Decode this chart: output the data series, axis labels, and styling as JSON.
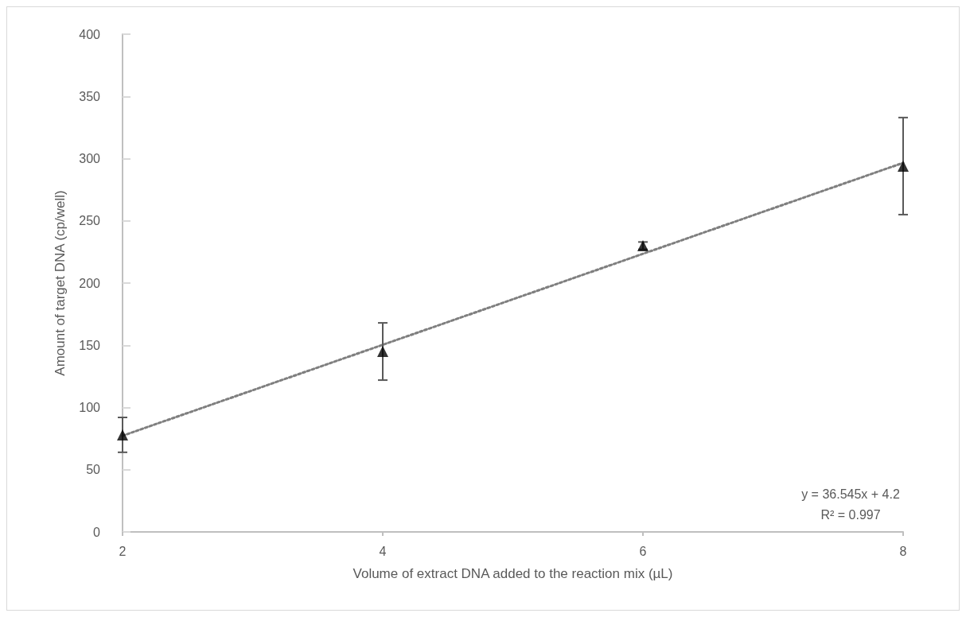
{
  "chart_data": {
    "type": "scatter",
    "xlabel": "Volume of extract DNA added to the reaction mix (µL)",
    "ylabel": "Amount of target DNA (cp/well)",
    "x": [
      2,
      4,
      6,
      8
    ],
    "series": [
      {
        "color": "#000000",
        "marker": "triangle",
        "values": [
          78,
          145,
          230,
          294
        ],
        "errors": [
          14,
          23,
          3,
          39
        ]
      },
      {
        "type": "line",
        "color": "#7f7f7f",
        "line_style": "dotted",
        "marker": "none",
        "x": [
          2,
          8
        ],
        "values": [
          77.3,
          296.6
        ]
      }
    ],
    "xlim": [
      2,
      8
    ],
    "xticks": [
      2,
      4,
      6,
      8
    ],
    "ylim": [
      0,
      400
    ],
    "yticks": [
      0,
      50,
      100,
      150,
      200,
      250,
      300,
      350,
      400
    ],
    "grid": false,
    "annotations": [
      "y = 36.545x + 4.2",
      "R² = 0.997"
    ]
  }
}
